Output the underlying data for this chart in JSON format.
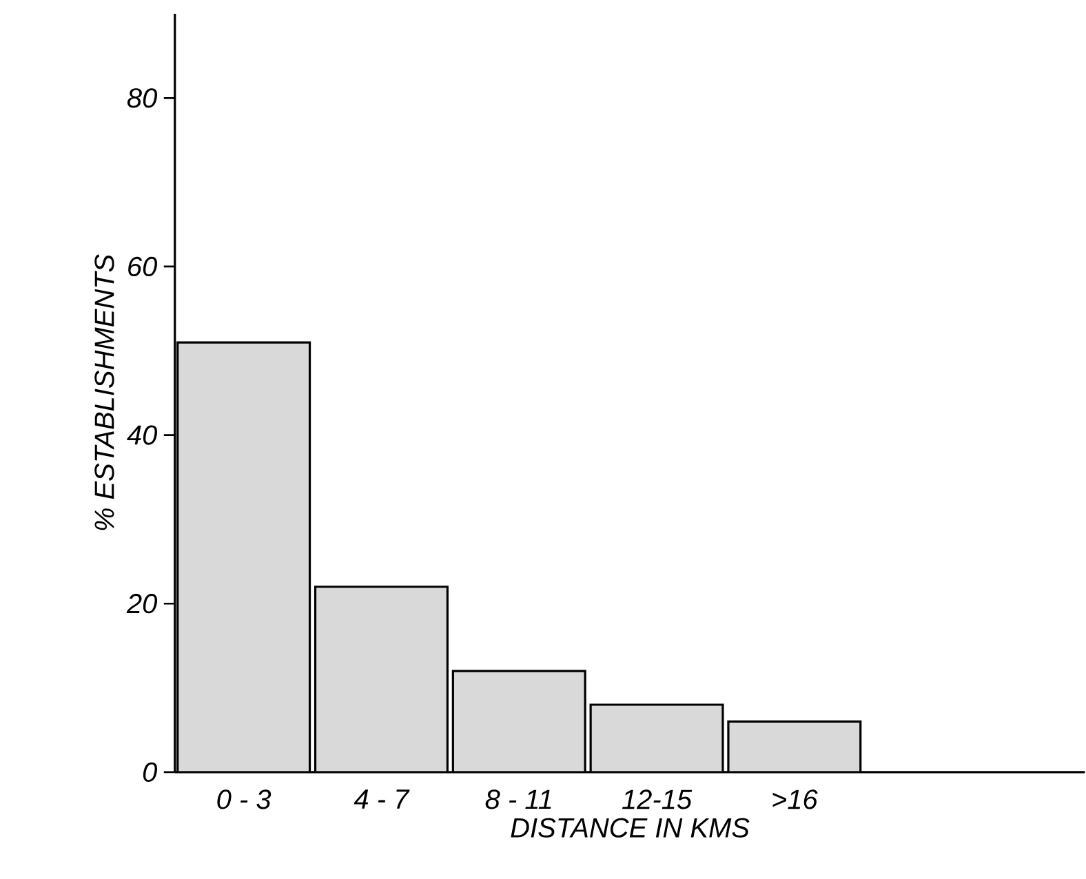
{
  "chart_data": {
    "type": "bar",
    "categories": [
      "0 - 3",
      "4 - 7",
      "8 - 11",
      "12-15",
      ">16"
    ],
    "values": [
      51,
      22,
      12,
      8,
      6
    ],
    "color": "#d9d9d9",
    "xlabel": "DISTANCE IN KMS",
    "ylabel": "% ESTABLISHMENTS",
    "ylim": [
      0,
      90
    ],
    "yticks": [
      0,
      20,
      40,
      60,
      80
    ]
  }
}
